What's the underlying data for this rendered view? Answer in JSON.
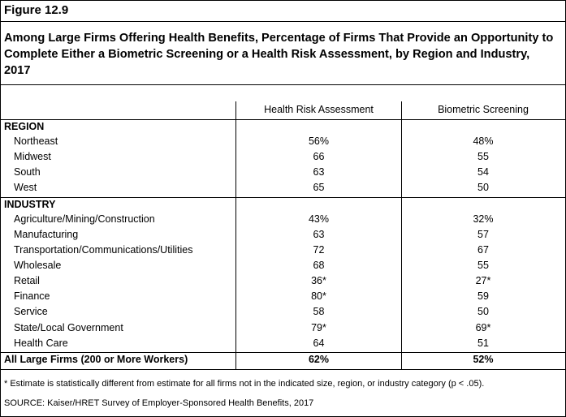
{
  "figure_label": "Figure 12.9",
  "title": "Among Large Firms Offering Health Benefits, Percentage of Firms That Provide an Opportunity to Complete Either a Biometric Screening or a Health Risk Assessment, by Region and Industry, 2017",
  "columns": [
    "Health Risk Assessment",
    "Biometric Screening"
  ],
  "sections": {
    "region": {
      "heading": "REGION",
      "rows": [
        {
          "label": "Northeast",
          "hra": "56%",
          "bio": "48%"
        },
        {
          "label": "Midwest",
          "hra": "66",
          "bio": "55"
        },
        {
          "label": "South",
          "hra": "63",
          "bio": "54"
        },
        {
          "label": "West",
          "hra": "65",
          "bio": "50"
        }
      ]
    },
    "industry": {
      "heading": "INDUSTRY",
      "rows": [
        {
          "label": "Agriculture/Mining/Construction",
          "hra": "43%",
          "bio": "32%"
        },
        {
          "label": "Manufacturing",
          "hra": "63",
          "bio": "57"
        },
        {
          "label": "Transportation/Communications/Utilities",
          "hra": "72",
          "bio": "67"
        },
        {
          "label": "Wholesale",
          "hra": "68",
          "bio": "55"
        },
        {
          "label": "Retail",
          "hra": "36*",
          "bio": "27*"
        },
        {
          "label": "Finance",
          "hra": "80*",
          "bio": "59"
        },
        {
          "label": "Service",
          "hra": "58",
          "bio": "50"
        },
        {
          "label": "State/Local Government",
          "hra": "79*",
          "bio": "69*"
        },
        {
          "label": "Health Care",
          "hra": "64",
          "bio": "51"
        }
      ]
    }
  },
  "total": {
    "label": "All Large Firms (200 or More Workers)",
    "hra": "62%",
    "bio": "52%"
  },
  "footnote": "* Estimate is statistically different from estimate for all firms not in the indicated size, region, or industry category (p < .05).",
  "source": "SOURCE: Kaiser/HRET Survey of Employer-Sponsored Health Benefits, 2017"
}
